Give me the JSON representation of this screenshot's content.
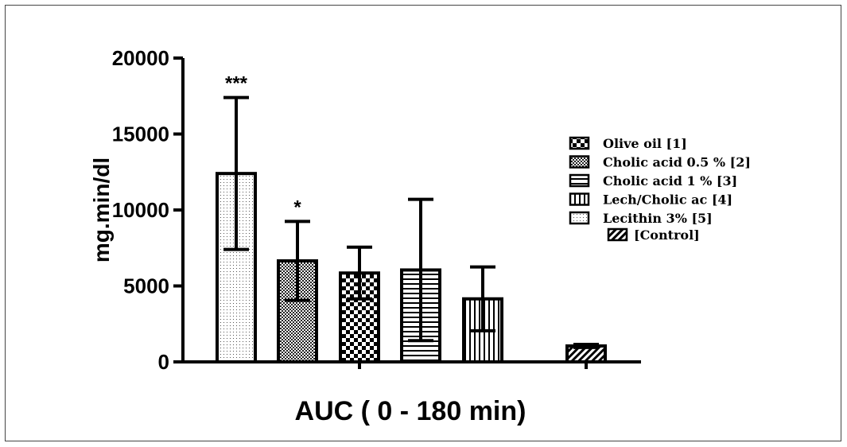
{
  "chart_data": {
    "type": "bar",
    "title": "",
    "xlabel": "AUC ( 0 - 180 min)",
    "ylabel": "mg.min/dl",
    "ylim": [
      0,
      20000
    ],
    "yticks": [
      "0",
      "5000",
      "10000",
      "15000",
      "20000"
    ],
    "categories": [
      "Lecithin 3% [5]",
      "Cholic acid 0.5 % [2]",
      "Olive oil [1]",
      "Cholic acid 1 % [3]",
      "Lech/Cholic ac [4]",
      "[Control]"
    ],
    "values": [
      12400,
      6650,
      5850,
      6050,
      4150,
      1050
    ],
    "errors": [
      5000,
      2600,
      1700,
      4650,
      2100,
      100
    ],
    "annotations": [
      "***",
      "*",
      "",
      "",
      "",
      ""
    ],
    "patterns": [
      "dots",
      "fine-check",
      "checker",
      "hlines",
      "vlines",
      "diag"
    ],
    "legend": {
      "position": "right",
      "entries": [
        {
          "label": "Olive oil [1]",
          "pattern": "checker"
        },
        {
          "label": "Cholic acid 0.5 % [2]",
          "pattern": "fine-check"
        },
        {
          "label": "Cholic acid 1 % [3]",
          "pattern": "hlines"
        },
        {
          "label": "Lech/Cholic ac [4]",
          "pattern": "vlines"
        },
        {
          "label": "Lecithin 3% [5]",
          "pattern": "dots"
        }
      ],
      "extra": {
        "label": "[Control]",
        "pattern": "diag"
      }
    },
    "grid": false
  }
}
